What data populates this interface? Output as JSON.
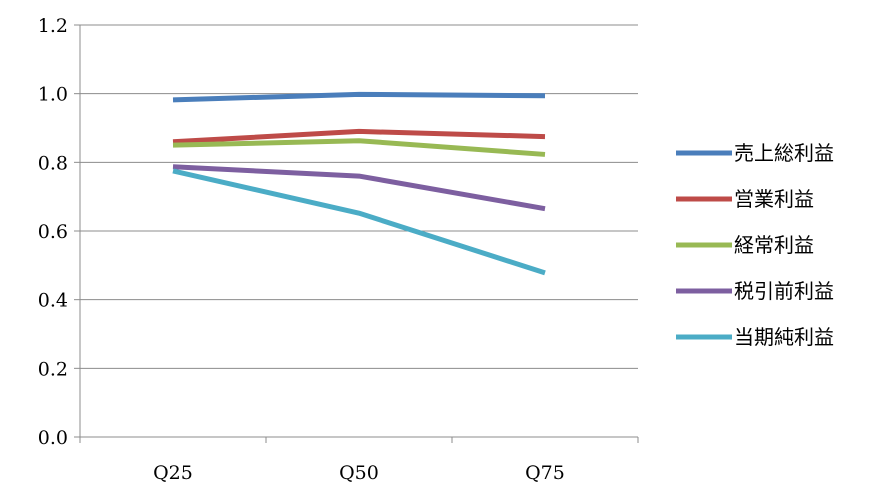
{
  "chart_data": {
    "type": "line",
    "title": "",
    "xlabel": "",
    "ylabel": "",
    "categories": [
      "Q25",
      "Q50",
      "Q75"
    ],
    "ylim": [
      0.0,
      1.2
    ],
    "yticks": [
      "0.0",
      "0.2",
      "0.4",
      "0.6",
      "0.8",
      "1.0",
      "1.2"
    ],
    "grid": true,
    "legend_position": "right",
    "series": [
      {
        "name": "売上総利益",
        "values": [
          0.982,
          0.998,
          0.994
        ],
        "color": "#4a7ebb"
      },
      {
        "name": "営業利益",
        "values": [
          0.86,
          0.89,
          0.875
        ],
        "color": "#be4b48"
      },
      {
        "name": "経常利益",
        "values": [
          0.85,
          0.863,
          0.823
        ],
        "color": "#98b954"
      },
      {
        "name": "税引前利益",
        "values": [
          0.787,
          0.76,
          0.665
        ],
        "color": "#7d5fa0"
      },
      {
        "name": "当期純利益",
        "values": [
          0.775,
          0.652,
          0.478
        ],
        "color": "#4bacc6"
      }
    ]
  }
}
